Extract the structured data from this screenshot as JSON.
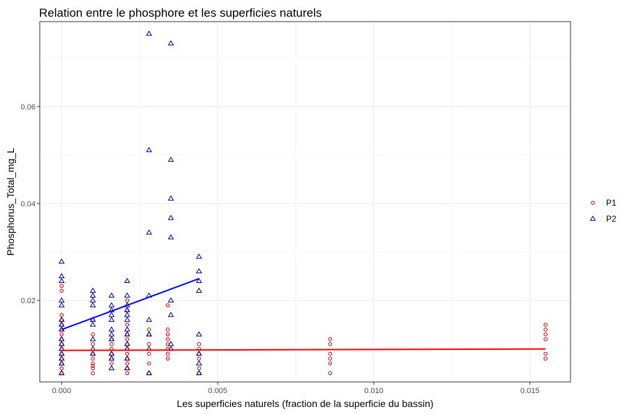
{
  "chart_data": {
    "type": "scatter",
    "title": "Relation entre le phosphore et les superficies naturels",
    "xlabel": "Les superficies naturels (fraction de la superficie du bassin)",
    "ylabel": "Phosphorus_Total_mg_L",
    "xlim": [
      -0.0007,
      0.0163
    ],
    "ylim": [
      0.0032,
      0.0775
    ],
    "x_ticks": [
      0.0,
      0.005,
      0.01,
      0.015
    ],
    "x_tick_labels": [
      "0.000",
      "0.005",
      "0.010",
      "0.015"
    ],
    "y_ticks": [
      0.02,
      0.04,
      0.06
    ],
    "y_tick_labels": [
      "0.02",
      "0.04",
      "0.06"
    ],
    "grid": true,
    "legend_position": "right",
    "series": [
      {
        "name": "P1",
        "color": "#cc0000",
        "marker": "circle",
        "points": [
          [
            0.0,
            0.023
          ],
          [
            0.0,
            0.022
          ],
          [
            0.0,
            0.017
          ],
          [
            0.0,
            0.016
          ],
          [
            0.0,
            0.015
          ],
          [
            0.0,
            0.014
          ],
          [
            0.0,
            0.013
          ],
          [
            0.0,
            0.012
          ],
          [
            0.0,
            0.011
          ],
          [
            0.0,
            0.01
          ],
          [
            0.0,
            0.009
          ],
          [
            0.0,
            0.008
          ],
          [
            0.0,
            0.007
          ],
          [
            0.0,
            0.006
          ],
          [
            0.0,
            0.005
          ],
          [
            0.001,
            0.016
          ],
          [
            0.001,
            0.013
          ],
          [
            0.001,
            0.011
          ],
          [
            0.001,
            0.009
          ],
          [
            0.001,
            0.008
          ],
          [
            0.001,
            0.007
          ],
          [
            0.001,
            0.0065
          ],
          [
            0.001,
            0.006
          ],
          [
            0.001,
            0.005
          ],
          [
            0.0016,
            0.012
          ],
          [
            0.0016,
            0.011
          ],
          [
            0.0016,
            0.01
          ],
          [
            0.0016,
            0.009
          ],
          [
            0.0016,
            0.008
          ],
          [
            0.0016,
            0.007
          ],
          [
            0.0021,
            0.02
          ],
          [
            0.0021,
            0.018
          ],
          [
            0.0021,
            0.015
          ],
          [
            0.0021,
            0.013
          ],
          [
            0.0021,
            0.012
          ],
          [
            0.0021,
            0.011
          ],
          [
            0.0021,
            0.01
          ],
          [
            0.0021,
            0.009
          ],
          [
            0.0021,
            0.008
          ],
          [
            0.0021,
            0.007
          ],
          [
            0.0021,
            0.006
          ],
          [
            0.0021,
            0.005
          ],
          [
            0.0028,
            0.014
          ],
          [
            0.0028,
            0.013
          ],
          [
            0.0028,
            0.011
          ],
          [
            0.0028,
            0.009
          ],
          [
            0.0028,
            0.007
          ],
          [
            0.0028,
            0.005
          ],
          [
            0.0034,
            0.019
          ],
          [
            0.0034,
            0.014
          ],
          [
            0.0034,
            0.013
          ],
          [
            0.0034,
            0.012
          ],
          [
            0.0034,
            0.011
          ],
          [
            0.0034,
            0.01
          ],
          [
            0.0034,
            0.009
          ],
          [
            0.0034,
            0.008
          ],
          [
            0.0044,
            0.011
          ],
          [
            0.0044,
            0.01
          ],
          [
            0.0044,
            0.009
          ],
          [
            0.0044,
            0.008
          ],
          [
            0.0044,
            0.006
          ],
          [
            0.0044,
            0.005
          ],
          [
            0.0086,
            0.012
          ],
          [
            0.0086,
            0.011
          ],
          [
            0.0086,
            0.009
          ],
          [
            0.0086,
            0.008
          ],
          [
            0.0086,
            0.007
          ],
          [
            0.0086,
            0.005
          ],
          [
            0.0155,
            0.015
          ],
          [
            0.0155,
            0.014
          ],
          [
            0.0155,
            0.013
          ],
          [
            0.0155,
            0.012
          ],
          [
            0.0155,
            0.009
          ],
          [
            0.0155,
            0.008
          ]
        ],
        "trend": {
          "x": [
            0.0,
            0.0155
          ],
          "y": [
            0.0097,
            0.01
          ]
        }
      },
      {
        "name": "P2",
        "color": "#00008b",
        "marker": "triangle",
        "points": [
          [
            0.0,
            0.028
          ],
          [
            0.0,
            0.025
          ],
          [
            0.0,
            0.024
          ],
          [
            0.0,
            0.02
          ],
          [
            0.0,
            0.019
          ],
          [
            0.0,
            0.016
          ],
          [
            0.0,
            0.015
          ],
          [
            0.0,
            0.014
          ],
          [
            0.0,
            0.012
          ],
          [
            0.0,
            0.011
          ],
          [
            0.0,
            0.01
          ],
          [
            0.0,
            0.009
          ],
          [
            0.0,
            0.008
          ],
          [
            0.0,
            0.007
          ],
          [
            0.0,
            0.005
          ],
          [
            0.001,
            0.022
          ],
          [
            0.001,
            0.021
          ],
          [
            0.001,
            0.02
          ],
          [
            0.001,
            0.019
          ],
          [
            0.001,
            0.016
          ],
          [
            0.001,
            0.015
          ],
          [
            0.001,
            0.012
          ],
          [
            0.001,
            0.01
          ],
          [
            0.001,
            0.009
          ],
          [
            0.0016,
            0.021
          ],
          [
            0.0016,
            0.019
          ],
          [
            0.0016,
            0.018
          ],
          [
            0.0016,
            0.017
          ],
          [
            0.0016,
            0.016
          ],
          [
            0.0016,
            0.014
          ],
          [
            0.0016,
            0.013
          ],
          [
            0.0016,
            0.012
          ],
          [
            0.0016,
            0.009
          ],
          [
            0.0016,
            0.008
          ],
          [
            0.0016,
            0.006
          ],
          [
            0.0021,
            0.024
          ],
          [
            0.0021,
            0.021
          ],
          [
            0.0021,
            0.019
          ],
          [
            0.0021,
            0.018
          ],
          [
            0.0021,
            0.017
          ],
          [
            0.0021,
            0.016
          ],
          [
            0.0021,
            0.014
          ],
          [
            0.0021,
            0.013
          ],
          [
            0.0021,
            0.011
          ],
          [
            0.0021,
            0.01
          ],
          [
            0.0021,
            0.008
          ],
          [
            0.0021,
            0.006
          ],
          [
            0.0028,
            0.075
          ],
          [
            0.0028,
            0.051
          ],
          [
            0.0028,
            0.034
          ],
          [
            0.0028,
            0.021
          ],
          [
            0.0028,
            0.016
          ],
          [
            0.0028,
            0.013
          ],
          [
            0.0028,
            0.01
          ],
          [
            0.0028,
            0.005
          ],
          [
            0.0035,
            0.073
          ],
          [
            0.0035,
            0.049
          ],
          [
            0.0035,
            0.041
          ],
          [
            0.0035,
            0.037
          ],
          [
            0.0035,
            0.033
          ],
          [
            0.0035,
            0.02
          ],
          [
            0.0035,
            0.017
          ],
          [
            0.0035,
            0.011
          ],
          [
            0.0035,
            0.01
          ],
          [
            0.0044,
            0.029
          ],
          [
            0.0044,
            0.026
          ],
          [
            0.0044,
            0.024
          ],
          [
            0.0044,
            0.022
          ],
          [
            0.0044,
            0.013
          ],
          [
            0.0044,
            0.009
          ],
          [
            0.0044,
            0.007
          ],
          [
            0.0044,
            0.005
          ]
        ],
        "trend": {
          "x": [
            0.0,
            0.0044
          ],
          "y": [
            0.014,
            0.0245
          ]
        }
      }
    ]
  }
}
